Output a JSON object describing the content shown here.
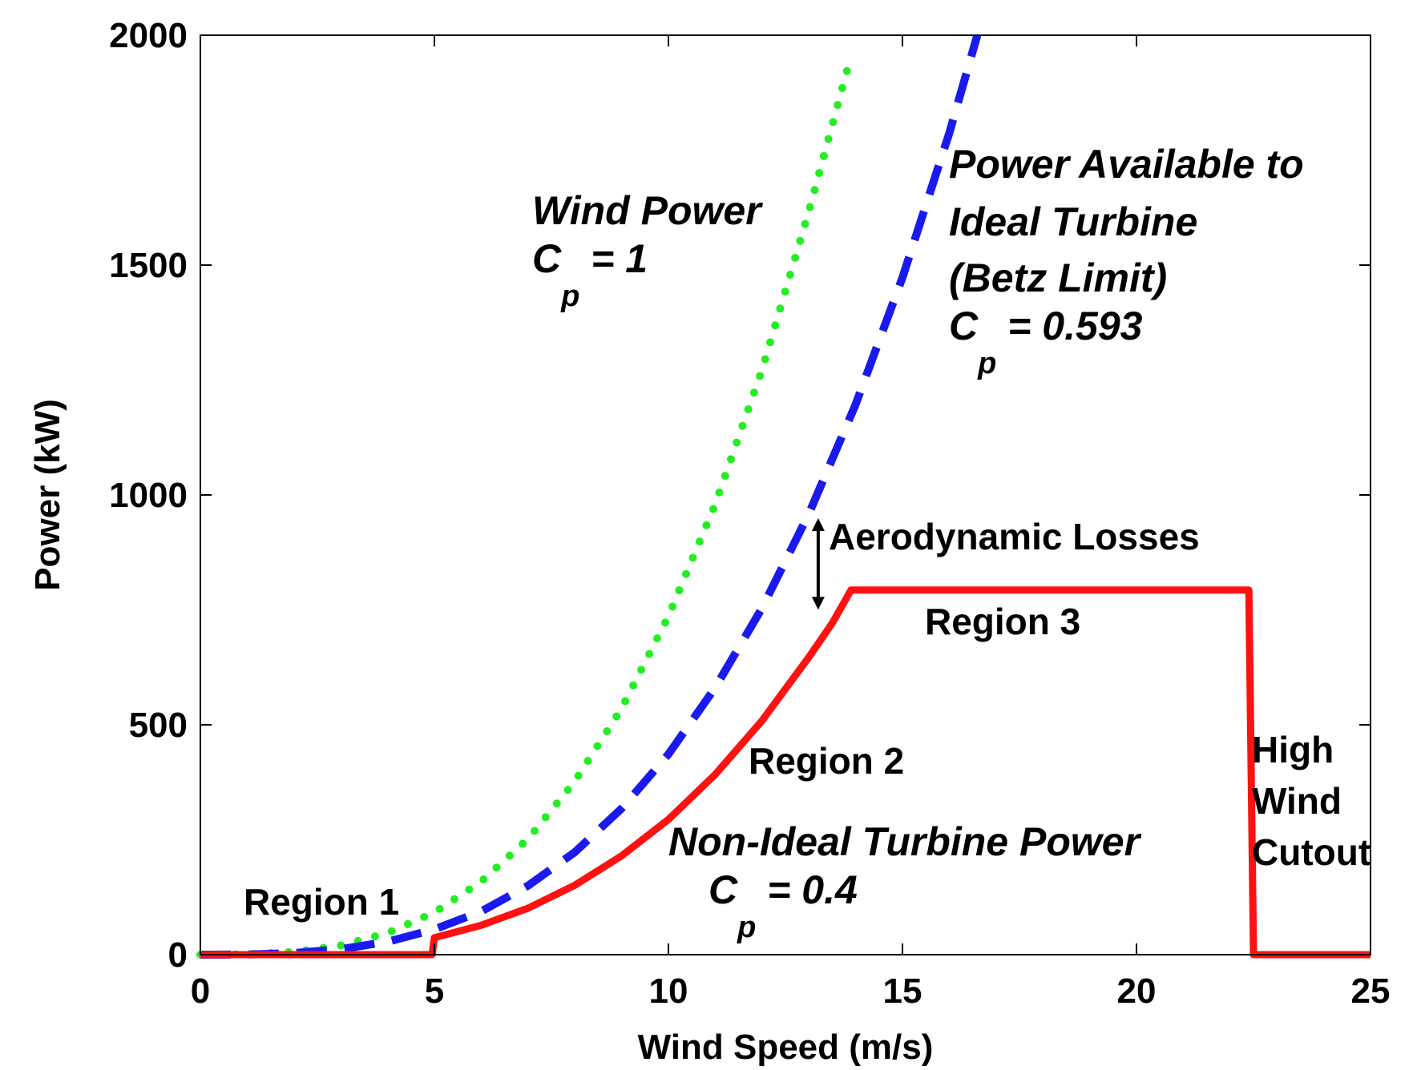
{
  "chart_data": {
    "type": "line",
    "xlabel": "Wind Speed (m/s)",
    "ylabel": "Power (kW)",
    "xlim": [
      0,
      25
    ],
    "ylim": [
      0,
      2000
    ],
    "xticks": [
      "0",
      "5",
      "10",
      "15",
      "20",
      "25"
    ],
    "yticks": [
      "0",
      "500",
      "1000",
      "1500",
      "2000"
    ],
    "grid": false,
    "colors": {
      "wind": "#22ee22",
      "betz": "#1a1aee",
      "nonideal": "#ff1111",
      "arrow": "#000000"
    },
    "series": [
      {
        "key": "wind",
        "style": "dotted",
        "x": [
          0,
          1,
          2,
          3,
          4,
          5,
          6,
          7,
          8,
          9,
          10,
          11,
          12,
          13,
          13.9
        ],
        "y": [
          0,
          1,
          6,
          20,
          47,
          92,
          159,
          252,
          377,
          536,
          736,
          980,
          1272,
          1617,
          1955
        ]
      },
      {
        "key": "betz",
        "style": "dashed",
        "x": [
          0,
          1,
          2,
          3,
          4,
          5,
          6,
          7,
          8,
          9,
          10,
          11,
          12,
          13,
          14,
          15,
          16,
          16.6
        ],
        "y": [
          0,
          0.4,
          3.5,
          12,
          28,
          55,
          94,
          150,
          223,
          318,
          436,
          581,
          754,
          959,
          1197,
          1473,
          1787,
          2000
        ]
      },
      {
        "key": "nonideal",
        "style": "solid",
        "x": [
          0,
          4.95,
          5.0,
          6,
          7,
          8,
          9,
          10,
          11,
          12,
          13,
          13.5,
          13.9,
          22.4,
          22.5,
          25
        ],
        "y": [
          0,
          0,
          37,
          64,
          101,
          151,
          215,
          294,
          392,
          509,
          647,
          721,
          793,
          793,
          0,
          0
        ]
      }
    ],
    "annotations": {
      "wind_title": "Wind Power",
      "wind_cp_base": "C",
      "wind_cp_sub": "p",
      "wind_cp_val": " = 1",
      "betz_line1": "Power Available to",
      "betz_line2": "Ideal Turbine",
      "betz_line3": "(Betz Limit)",
      "betz_cp_base": "C",
      "betz_cp_sub": "p",
      "betz_cp_val": " = 0.593",
      "aero": "Aerodynamic Losses",
      "region1": "Region 1",
      "region2": "Region 2",
      "region3": "Region 3",
      "nonideal_title": "Non-Ideal Turbine Power",
      "nonideal_cp_base": "C",
      "nonideal_cp_sub": "p",
      "nonideal_cp_val": " = 0.4",
      "high1": "High",
      "high2": "Wind",
      "high3": "Cutout"
    },
    "aero_arrow": {
      "x": 13.2,
      "y_top": 960,
      "y_bottom": 740
    }
  }
}
